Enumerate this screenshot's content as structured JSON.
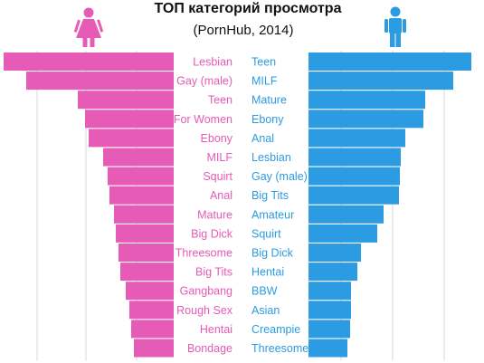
{
  "chart_data": {
    "type": "bar",
    "title": "ТОП категорий просмотра",
    "subtitle": "(PornHub, 2014)",
    "grid": true,
    "icons": {
      "left": "female-icon",
      "right": "male-icon"
    },
    "colors": {
      "female": "#e65bb5",
      "male": "#2b9be2",
      "grid": "#d9d9d9"
    },
    "xlim": [
      0,
      190
    ],
    "series": [
      {
        "side": "left",
        "categories": [
          "Lesbian",
          "Gay (male)",
          "Teen",
          "For Women",
          "Ebony",
          "MILF",
          "Squirt",
          "Anal",
          "Mature",
          "Big Dick",
          "Threesome",
          "Big Tits",
          "Gangbang",
          "Rough Sex",
          "Hentai",
          "Bondage"
        ],
        "values": [
          188,
          163,
          106,
          98,
          94,
          78,
          73,
          71,
          66,
          64,
          61,
          59,
          53,
          49,
          47,
          44
        ]
      },
      {
        "side": "right",
        "categories": [
          "Teen",
          "MILF",
          "Mature",
          "Ebony",
          "Anal",
          "Lesbian",
          "Gay (male)",
          "Big Tits",
          "Amateur",
          "Squirt",
          "Big Dick",
          "Hentai",
          "BBW",
          "Asian",
          "Creampie",
          "Threesome"
        ],
        "values": [
          180,
          160,
          129,
          127,
          107,
          102,
          101,
          100,
          83,
          76,
          58,
          54,
          47,
          47,
          46,
          43
        ]
      }
    ]
  }
}
